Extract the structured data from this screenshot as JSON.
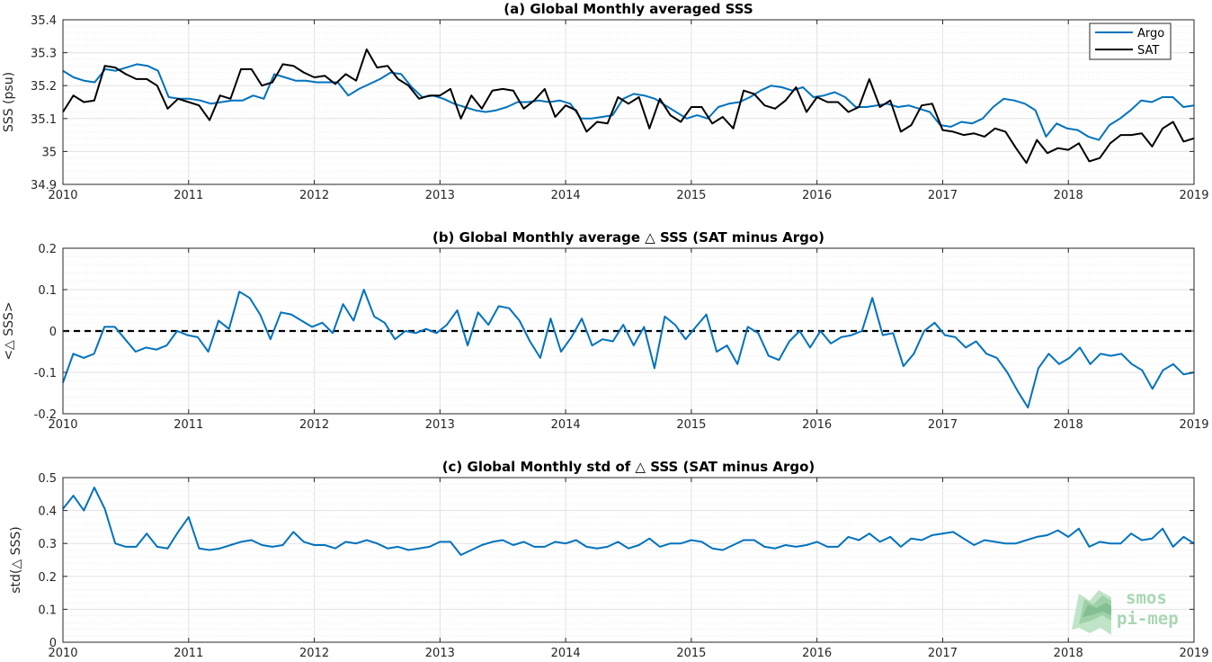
{
  "colors": {
    "argo": "#0072BD",
    "sat": "#000000",
    "logo": "#8fc99b"
  },
  "logo": {
    "line1": "smos",
    "line2": "pi-mep"
  },
  "chart_data": [
    {
      "type": "line",
      "title": "(a) Global Monthly averaged SSS",
      "ylabel": "SSS (psu)",
      "xlim": [
        2010,
        2019
      ],
      "ylim": [
        34.9,
        35.4
      ],
      "xticks": [
        "2010",
        "2011",
        "2012",
        "2013",
        "2014",
        "2015",
        "2016",
        "2017",
        "2018",
        "2019"
      ],
      "yticks": [
        "34.9",
        "35",
        "35.1",
        "35.2",
        "35.3",
        "35.4"
      ],
      "grid": true,
      "legend_position": "top-right",
      "series": [
        {
          "name": "Argo",
          "color": "#0072BD",
          "values": [
            35.245,
            35.225,
            35.215,
            35.21,
            35.25,
            35.245,
            35.255,
            35.265,
            35.26,
            35.245,
            35.165,
            35.16,
            35.16,
            35.155,
            35.145,
            35.15,
            35.155,
            35.155,
            35.17,
            35.16,
            35.235,
            35.225,
            35.215,
            35.215,
            35.21,
            35.21,
            35.21,
            35.17,
            35.19,
            35.205,
            35.22,
            35.24,
            35.235,
            35.195,
            35.165,
            35.17,
            35.16,
            35.145,
            35.135,
            35.125,
            35.12,
            35.125,
            35.135,
            35.15,
            35.15,
            35.155,
            35.15,
            35.155,
            35.145,
            35.1,
            35.1,
            35.105,
            35.11,
            35.16,
            35.175,
            35.17,
            35.16,
            35.14,
            35.12,
            35.1,
            35.11,
            35.1,
            35.135,
            35.145,
            35.15,
            35.165,
            35.185,
            35.2,
            35.195,
            35.185,
            35.195,
            35.165,
            35.17,
            35.18,
            35.165,
            35.135,
            35.135,
            35.14,
            35.145,
            35.135,
            35.14,
            35.13,
            35.12,
            35.08,
            35.075,
            35.09,
            35.085,
            35.1,
            35.135,
            35.16,
            35.155,
            35.145,
            35.125,
            35.045,
            35.085,
            35.07,
            35.065,
            35.045,
            35.035,
            35.08,
            35.1,
            35.125,
            35.155,
            35.15,
            35.165,
            35.165,
            35.135,
            35.14
          ]
        },
        {
          "name": "SAT",
          "color": "#000000",
          "values": [
            35.12,
            35.17,
            35.15,
            35.155,
            35.26,
            35.255,
            35.235,
            35.22,
            35.22,
            35.2,
            35.13,
            35.16,
            35.15,
            35.14,
            35.095,
            35.17,
            35.16,
            35.25,
            35.25,
            35.2,
            35.21,
            35.265,
            35.26,
            35.24,
            35.225,
            35.23,
            35.205,
            35.235,
            35.215,
            35.31,
            35.255,
            35.26,
            35.22,
            35.2,
            35.16,
            35.17,
            35.17,
            35.19,
            35.1,
            35.17,
            35.13,
            35.185,
            35.19,
            35.185,
            35.13,
            35.155,
            35.19,
            35.105,
            35.14,
            35.125,
            35.06,
            35.09,
            35.085,
            35.165,
            35.145,
            35.165,
            35.07,
            35.16,
            35.11,
            35.09,
            35.135,
            35.135,
            35.085,
            35.105,
            35.07,
            35.185,
            35.175,
            35.14,
            35.13,
            35.155,
            35.195,
            35.12,
            35.165,
            35.15,
            35.15,
            35.12,
            35.135,
            35.22,
            35.135,
            35.155,
            35.06,
            35.08,
            35.14,
            35.145,
            35.065,
            35.06,
            35.05,
            35.055,
            35.045,
            35.07,
            35.06,
            35.01,
            34.965,
            35.035,
            34.995,
            35.01,
            35.005,
            35.025,
            34.97,
            34.98,
            35.025,
            35.05,
            35.05,
            35.055,
            35.015,
            35.07,
            35.09,
            35.03,
            35.04
          ]
        }
      ]
    },
    {
      "type": "line",
      "title": "(b) Global Monthly average △ SSS (SAT minus Argo)",
      "ylabel": "<△ SSS>",
      "xlim": [
        2010,
        2019
      ],
      "ylim": [
        -0.2,
        0.2
      ],
      "xticks": [
        "2010",
        "2011",
        "2012",
        "2013",
        "2014",
        "2015",
        "2016",
        "2017",
        "2018",
        "2019"
      ],
      "yticks": [
        "-0.2",
        "-0.1",
        "0",
        "0.1",
        "0.2"
      ],
      "grid": true,
      "reference_line": 0,
      "series": [
        {
          "name": "",
          "color": "#0072BD",
          "values": [
            -0.125,
            -0.055,
            -0.065,
            -0.055,
            0.01,
            0.01,
            -0.02,
            -0.05,
            -0.04,
            -0.045,
            -0.035,
            0.0,
            -0.01,
            -0.015,
            -0.05,
            0.025,
            0.005,
            0.095,
            0.08,
            0.04,
            -0.02,
            0.045,
            0.04,
            0.025,
            0.01,
            0.02,
            -0.005,
            0.065,
            0.025,
            0.1,
            0.035,
            0.02,
            -0.02,
            0.0,
            -0.005,
            0.005,
            -0.005,
            0.015,
            0.05,
            -0.035,
            0.045,
            0.015,
            0.06,
            0.055,
            0.025,
            -0.025,
            -0.065,
            0.03,
            -0.05,
            -0.015,
            0.03,
            -0.035,
            -0.02,
            -0.025,
            0.015,
            -0.035,
            0.01,
            -0.09,
            0.035,
            0.015,
            -0.02,
            0.01,
            0.04,
            -0.05,
            -0.035,
            -0.08,
            0.01,
            -0.005,
            -0.06,
            -0.07,
            -0.025,
            0.0,
            -0.04,
            0.0,
            -0.03,
            -0.015,
            -0.01,
            0.0,
            0.08,
            -0.01,
            -0.005,
            -0.085,
            -0.055,
            0.0,
            0.02,
            -0.01,
            -0.015,
            -0.04,
            -0.025,
            -0.055,
            -0.065,
            -0.1,
            -0.145,
            -0.185,
            -0.09,
            -0.055,
            -0.08,
            -0.065,
            -0.04,
            -0.08,
            -0.055,
            -0.06,
            -0.055,
            -0.08,
            -0.095,
            -0.14,
            -0.095,
            -0.08,
            -0.105,
            -0.1
          ]
        }
      ]
    },
    {
      "type": "line",
      "title": "(c) Global Monthly std of △ SSS (SAT minus Argo)",
      "ylabel": "std(△ SSS)",
      "xlim": [
        2010,
        2019
      ],
      "ylim": [
        0,
        0.5
      ],
      "xticks": [
        "2010",
        "2011",
        "2012",
        "2013",
        "2014",
        "2015",
        "2016",
        "2017",
        "2018",
        "2019"
      ],
      "yticks": [
        "0",
        "0.1",
        "0.2",
        "0.3",
        "0.4",
        "0.5"
      ],
      "grid": true,
      "series": [
        {
          "name": "",
          "color": "#0072BD",
          "values": [
            0.405,
            0.445,
            0.4,
            0.47,
            0.405,
            0.3,
            0.29,
            0.29,
            0.33,
            0.29,
            0.285,
            0.335,
            0.38,
            0.285,
            0.28,
            0.285,
            0.295,
            0.305,
            0.31,
            0.295,
            0.29,
            0.295,
            0.335,
            0.305,
            0.295,
            0.295,
            0.285,
            0.305,
            0.3,
            0.31,
            0.3,
            0.285,
            0.29,
            0.28,
            0.285,
            0.29,
            0.305,
            0.305,
            0.265,
            0.28,
            0.295,
            0.305,
            0.31,
            0.295,
            0.305,
            0.29,
            0.29,
            0.305,
            0.3,
            0.31,
            0.29,
            0.285,
            0.29,
            0.305,
            0.285,
            0.295,
            0.315,
            0.29,
            0.3,
            0.3,
            0.31,
            0.305,
            0.285,
            0.28,
            0.295,
            0.31,
            0.31,
            0.29,
            0.285,
            0.295,
            0.29,
            0.295,
            0.305,
            0.29,
            0.29,
            0.32,
            0.31,
            0.33,
            0.305,
            0.32,
            0.29,
            0.315,
            0.31,
            0.325,
            0.33,
            0.335,
            0.315,
            0.295,
            0.31,
            0.305,
            0.3,
            0.3,
            0.31,
            0.32,
            0.325,
            0.34,
            0.32,
            0.345,
            0.29,
            0.305,
            0.3,
            0.3,
            0.33,
            0.31,
            0.315,
            0.345,
            0.29,
            0.32,
            0.3
          ]
        }
      ]
    }
  ]
}
